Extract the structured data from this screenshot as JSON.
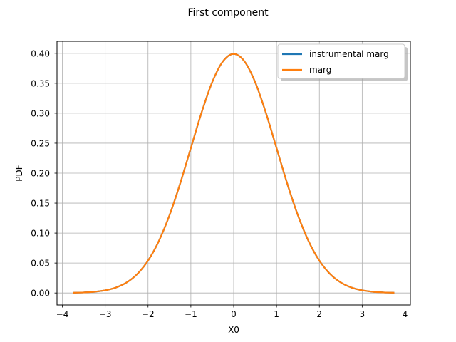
{
  "chart_data": {
    "type": "line",
    "title": "First component",
    "xlabel": "X0",
    "ylabel": "PDF",
    "xlim": [
      -4.125,
      4.125
    ],
    "ylim": [
      -0.02,
      0.42
    ],
    "xticks": [
      -4,
      -3,
      -2,
      -1,
      0,
      1,
      2,
      3,
      4
    ],
    "xtick_labels": [
      "−4",
      "−3",
      "−2",
      "−1",
      "0",
      "1",
      "2",
      "3",
      "4"
    ],
    "yticks": [
      0.0,
      0.05,
      0.1,
      0.15,
      0.2,
      0.25,
      0.3,
      0.35,
      0.4
    ],
    "ytick_labels": [
      "0.00",
      "0.05",
      "0.10",
      "0.15",
      "0.20",
      "0.25",
      "0.30",
      "0.35",
      "0.40"
    ],
    "grid": true,
    "legend_position": "top-right",
    "x": [
      -3.75,
      -3.5,
      -3.25,
      -3.0,
      -2.75,
      -2.5,
      -2.25,
      -2.0,
      -1.75,
      -1.5,
      -1.25,
      -1.0,
      -0.75,
      -0.5,
      -0.25,
      0.0,
      0.25,
      0.5,
      0.75,
      1.0,
      1.25,
      1.5,
      1.75,
      2.0,
      2.25,
      2.5,
      2.75,
      3.0,
      3.25,
      3.5,
      3.75
    ],
    "series": [
      {
        "name": "instrumental marg",
        "color": "#1f77b4",
        "values": [
          0.0004,
          0.0009,
          0.002,
          0.0044,
          0.0091,
          0.0175,
          0.0317,
          0.054,
          0.0863,
          0.1295,
          0.1826,
          0.242,
          0.3011,
          0.3521,
          0.3867,
          0.3989,
          0.3867,
          0.3521,
          0.3011,
          0.242,
          0.1826,
          0.1295,
          0.0863,
          0.054,
          0.0317,
          0.0175,
          0.0091,
          0.0044,
          0.002,
          0.0009,
          0.0004
        ]
      },
      {
        "name": "marg",
        "color": "#ff7f0e",
        "values": [
          0.0004,
          0.0009,
          0.002,
          0.0044,
          0.0091,
          0.0175,
          0.0317,
          0.054,
          0.0863,
          0.1295,
          0.1826,
          0.242,
          0.3011,
          0.3521,
          0.3867,
          0.3989,
          0.3867,
          0.3521,
          0.3011,
          0.242,
          0.1826,
          0.1295,
          0.0863,
          0.054,
          0.0317,
          0.0175,
          0.0091,
          0.0044,
          0.002,
          0.0009,
          0.0004
        ]
      }
    ]
  }
}
